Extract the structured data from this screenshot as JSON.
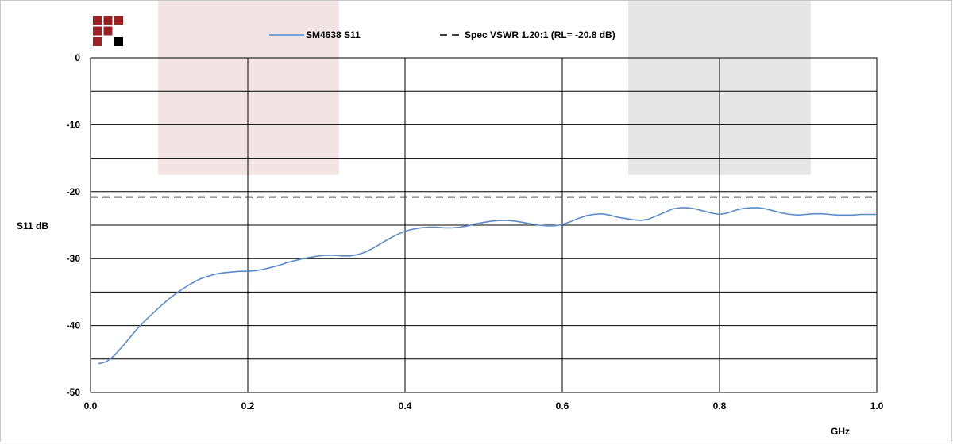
{
  "colors": {
    "logo_red": "#9b2226",
    "logo_black": "#000000",
    "band_left": "#f2e4e4",
    "band_right": "#e6e6e6",
    "series_line": "#5b8bc9",
    "spec_line": "#000000",
    "grid": "#000000"
  },
  "logo": {
    "icon": "company-logo-icon"
  },
  "chart_data": {
    "type": "line",
    "xlabel": "GHz",
    "ylabel": "S11 dB",
    "xlim": [
      0,
      1.0
    ],
    "ylim": [
      -50,
      0
    ],
    "x_ticks": [
      "0.0",
      "0.2",
      "0.4",
      "0.6",
      "0.8",
      "1.0"
    ],
    "y_ticks": [
      "0",
      "-10",
      "-20",
      "-30",
      "-40",
      "-50"
    ],
    "grid": true,
    "legend_position": "top-center",
    "highlight_bands": [
      {
        "x": [
          0.086,
          0.316
        ],
        "y": [
          -17.5,
          0
        ]
      },
      {
        "x": [
          0.684,
          0.916
        ],
        "y": [
          -17.5,
          0
        ]
      }
    ],
    "series": [
      {
        "name": "SM4638 S11",
        "style": "solid",
        "x": [
          0.01,
          0.02,
          0.03,
          0.04,
          0.05,
          0.06,
          0.07,
          0.08,
          0.09,
          0.1,
          0.11,
          0.12,
          0.13,
          0.14,
          0.15,
          0.16,
          0.17,
          0.18,
          0.19,
          0.2,
          0.21,
          0.22,
          0.23,
          0.24,
          0.25,
          0.26,
          0.27,
          0.28,
          0.29,
          0.3,
          0.31,
          0.32,
          0.33,
          0.34,
          0.35,
          0.36,
          0.37,
          0.38,
          0.39,
          0.4,
          0.41,
          0.42,
          0.43,
          0.44,
          0.45,
          0.46,
          0.47,
          0.48,
          0.49,
          0.5,
          0.51,
          0.52,
          0.53,
          0.54,
          0.55,
          0.56,
          0.57,
          0.58,
          0.59,
          0.6,
          0.61,
          0.62,
          0.63,
          0.64,
          0.65,
          0.66,
          0.67,
          0.68,
          0.69,
          0.7,
          0.71,
          0.72,
          0.73,
          0.74,
          0.75,
          0.76,
          0.77,
          0.78,
          0.79,
          0.8,
          0.81,
          0.82,
          0.83,
          0.84,
          0.85,
          0.86,
          0.87,
          0.88,
          0.89,
          0.9,
          0.91,
          0.92,
          0.93,
          0.94,
          0.95,
          0.96,
          0.97,
          0.98,
          0.99,
          1.0
        ],
        "values": [
          -45.7,
          -45.4,
          -44.5,
          -43.2,
          -41.8,
          -40.4,
          -39.2,
          -38.1,
          -37.0,
          -36.0,
          -35.1,
          -34.3,
          -33.6,
          -33.0,
          -32.6,
          -32.3,
          -32.1,
          -32.0,
          -31.9,
          -31.9,
          -31.8,
          -31.6,
          -31.3,
          -31.0,
          -30.6,
          -30.3,
          -30.0,
          -29.8,
          -29.6,
          -29.5,
          -29.5,
          -29.6,
          -29.6,
          -29.4,
          -29.0,
          -28.4,
          -27.7,
          -27.0,
          -26.4,
          -25.9,
          -25.6,
          -25.4,
          -25.3,
          -25.3,
          -25.4,
          -25.4,
          -25.3,
          -25.1,
          -24.8,
          -24.6,
          -24.4,
          -24.3,
          -24.3,
          -24.4,
          -24.6,
          -24.8,
          -25.0,
          -25.1,
          -25.1,
          -24.9,
          -24.5,
          -24.0,
          -23.6,
          -23.4,
          -23.3,
          -23.5,
          -23.8,
          -24.0,
          -24.2,
          -24.3,
          -24.1,
          -23.6,
          -23.1,
          -22.6,
          -22.4,
          -22.4,
          -22.6,
          -22.9,
          -23.2,
          -23.4,
          -23.2,
          -22.8,
          -22.5,
          -22.4,
          -22.4,
          -22.6,
          -22.9,
          -23.2,
          -23.4,
          -23.5,
          -23.4,
          -23.3,
          -23.3,
          -23.4,
          -23.5,
          -23.5,
          -23.5,
          -23.4,
          -23.4,
          -23.4
        ]
      },
      {
        "name": "Spec VSWR 1.20:1 (RL= -20.8 dB)",
        "style": "dashed",
        "x": [
          0.0,
          1.0
        ],
        "values": [
          -20.8,
          -20.8
        ]
      }
    ]
  }
}
